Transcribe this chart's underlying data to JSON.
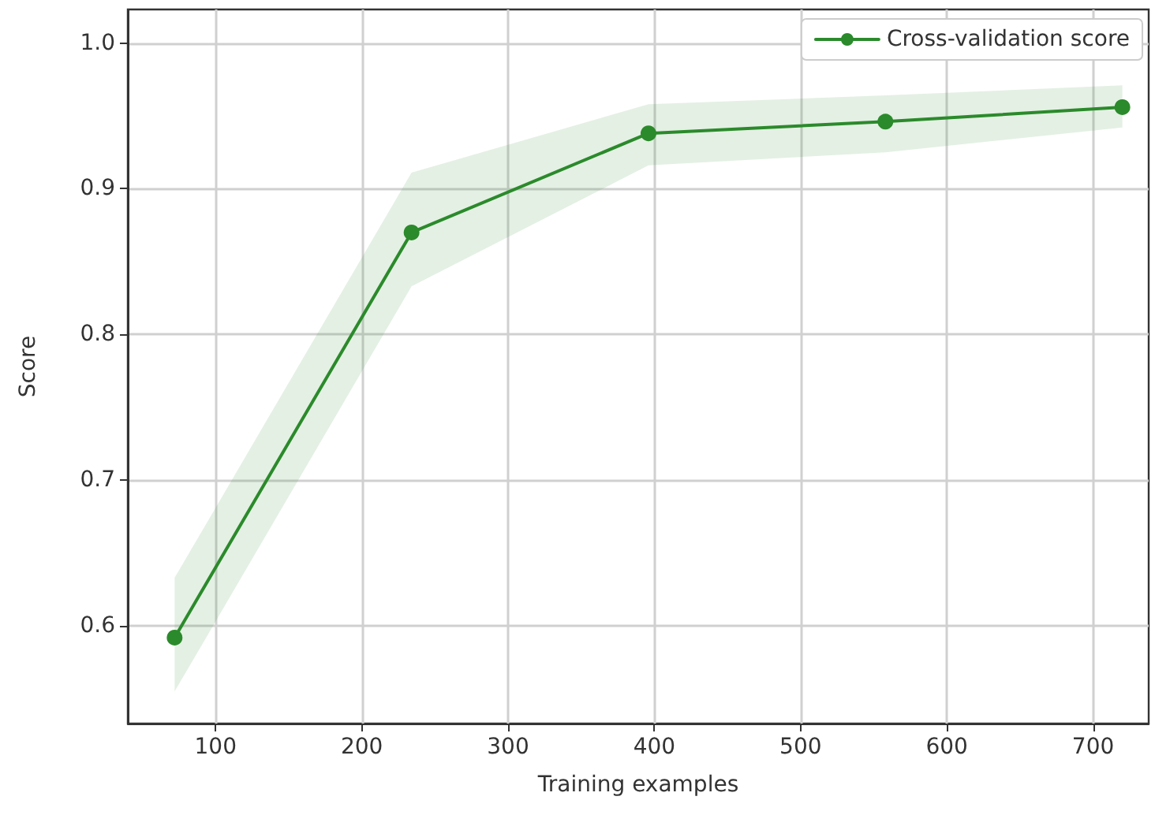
{
  "chart_data": {
    "type": "line",
    "xlabel": "Training examples",
    "ylabel": "Score",
    "xlim": [
      40,
      738
    ],
    "xticks": [
      100,
      200,
      300,
      400,
      500,
      600,
      700
    ],
    "ylim": [
      0.533,
      1.023
    ],
    "yticks": [
      0.6,
      0.7,
      0.8,
      0.9,
      {
        "value": 1,
        "label": "1.0"
      }
    ],
    "grid": true,
    "legend": "top right",
    "marker": "circle",
    "line_style": "solid",
    "series": [
      {
        "name": "Cross-validation score",
        "color": "#2b8a2b",
        "x": [
          72,
          234,
          396,
          558,
          720
        ],
        "values": [
          0.592,
          0.87,
          0.938,
          0.946,
          0.956
        ],
        "lower": [
          0.555,
          0.833,
          0.916,
          0.925,
          0.942
        ],
        "upper": [
          0.633,
          0.911,
          0.958,
          0.964,
          0.971
        ]
      }
    ]
  }
}
